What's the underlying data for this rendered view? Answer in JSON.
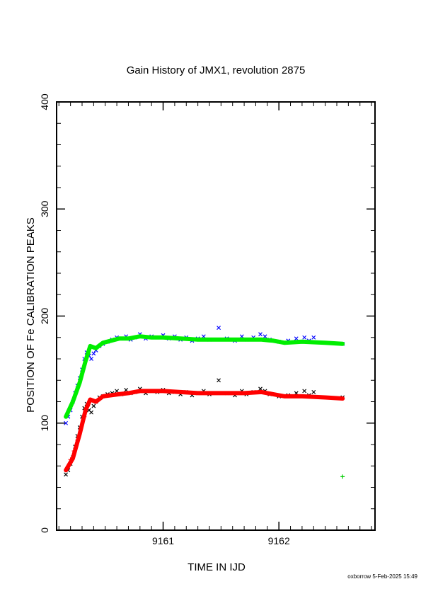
{
  "chart_data": {
    "type": "line",
    "title": "Gain History of JMX1, revolution 2875",
    "xlabel": "TIME IN IJD",
    "ylabel": "POSITION OF Fe CALIBRATION PEAKS",
    "xlim": [
      9160.08,
      9162.83
    ],
    "ylim": [
      0,
      400
    ],
    "x_ticks": [
      9161,
      9162
    ],
    "x_tick_labels": [
      "9161",
      "9162"
    ],
    "y_ticks": [
      0,
      100,
      200,
      300,
      400
    ],
    "y_tick_labels": [
      "0",
      "100",
      "200",
      "300",
      "400"
    ],
    "grid": false,
    "series": [
      {
        "style": "fit-line",
        "color": "#00ee00",
        "x": [
          9160.16,
          9160.22,
          9160.28,
          9160.33,
          9160.37,
          9160.42,
          9160.48,
          9160.55,
          9160.62,
          9160.7,
          9160.8,
          9160.9,
          9161.0,
          9161.15,
          9161.3,
          9161.5,
          9161.7,
          9161.85,
          9161.95,
          9162.05,
          9162.2,
          9162.4,
          9162.55
        ],
        "y": [
          106,
          120,
          138,
          158,
          172,
          170,
          175,
          177,
          179,
          179,
          181,
          180,
          180,
          179,
          178,
          178,
          178,
          178,
          177,
          175,
          176,
          175,
          174
        ]
      },
      {
        "style": "fit-line",
        "color": "#ff0000",
        "x": [
          9160.16,
          9160.22,
          9160.28,
          9160.33,
          9160.37,
          9160.42,
          9160.48,
          9160.55,
          9160.62,
          9160.7,
          9160.8,
          9160.9,
          9161.0,
          9161.15,
          9161.3,
          9161.5,
          9161.7,
          9161.85,
          9161.95,
          9162.05,
          9162.2,
          9162.4,
          9162.55
        ],
        "y": [
          56,
          67,
          90,
          112,
          122,
          120,
          125,
          126,
          127,
          128,
          130,
          130,
          130,
          129,
          128,
          128,
          128,
          129,
          127,
          125,
          125,
          124,
          123
        ]
      },
      {
        "style": "points-x",
        "color": "#0000ff",
        "x": [
          9160.16,
          9160.18,
          9160.2,
          9160.22,
          9160.24,
          9160.26,
          9160.28,
          9160.3,
          9160.32,
          9160.34,
          9160.36,
          9160.38,
          9160.4,
          9160.42,
          9160.45,
          9160.48,
          9160.52,
          9160.56,
          9160.6,
          9160.64,
          9160.68,
          9160.72,
          9160.76,
          9160.8,
          9160.85,
          9160.9,
          9160.95,
          9161.0,
          9161.05,
          9161.1,
          9161.15,
          9161.2,
          9161.25,
          9161.3,
          9161.35,
          9161.4,
          9161.48,
          9161.55,
          9161.62,
          9161.68,
          9161.72,
          9161.78,
          9161.84,
          9161.88,
          9161.92,
          9162.0,
          9162.08,
          9162.15,
          9162.22,
          9162.26,
          9162.3,
          9162.55
        ],
        "y": [
          100,
          106,
          112,
          120,
          128,
          135,
          142,
          150,
          160,
          166,
          163,
          160,
          165,
          168,
          172,
          174,
          176,
          178,
          180,
          179,
          181,
          178,
          180,
          183,
          179,
          181,
          180,
          182,
          179,
          181,
          178,
          180,
          177,
          179,
          181,
          178,
          189,
          179,
          177,
          181,
          178,
          180,
          183,
          181,
          178,
          176,
          177,
          179,
          180,
          177,
          180,
          174
        ]
      },
      {
        "style": "points-x",
        "color": "#000000",
        "x": [
          9160.16,
          9160.18,
          9160.2,
          9160.22,
          9160.24,
          9160.26,
          9160.28,
          9160.3,
          9160.32,
          9160.34,
          9160.36,
          9160.38,
          9160.4,
          9160.42,
          9160.45,
          9160.48,
          9160.52,
          9160.56,
          9160.6,
          9160.64,
          9160.68,
          9160.72,
          9160.76,
          9160.8,
          9160.85,
          9160.9,
          9160.95,
          9161.0,
          9161.05,
          9161.1,
          9161.15,
          9161.2,
          9161.25,
          9161.3,
          9161.35,
          9161.4,
          9161.48,
          9161.55,
          9161.62,
          9161.68,
          9161.72,
          9161.78,
          9161.84,
          9161.88,
          9161.92,
          9162.0,
          9162.08,
          9162.15,
          9162.22,
          9162.26,
          9162.3,
          9162.55
        ],
        "y": [
          52,
          56,
          62,
          68,
          78,
          88,
          96,
          106,
          114,
          118,
          112,
          110,
          116,
          120,
          124,
          125,
          127,
          128,
          130,
          127,
          131,
          128,
          129,
          132,
          128,
          130,
          129,
          131,
          128,
          129,
          127,
          129,
          126,
          128,
          130,
          127,
          140,
          128,
          126,
          130,
          127,
          129,
          132,
          130,
          127,
          125,
          126,
          128,
          130,
          126,
          129,
          124
        ]
      },
      {
        "style": "points-plus",
        "color": "#ff0000",
        "x": [
          9160.2,
          9160.23,
          9160.26,
          9160.29,
          9160.32,
          9160.35
        ],
        "y": [
          66,
          74,
          84,
          95,
          106,
          116
        ]
      },
      {
        "style": "points-plus",
        "color": "#00cc00",
        "x": [
          9162.55
        ],
        "y": [
          50
        ]
      }
    ]
  },
  "footer": "oxborrow  5-Feb-2025 15:49"
}
